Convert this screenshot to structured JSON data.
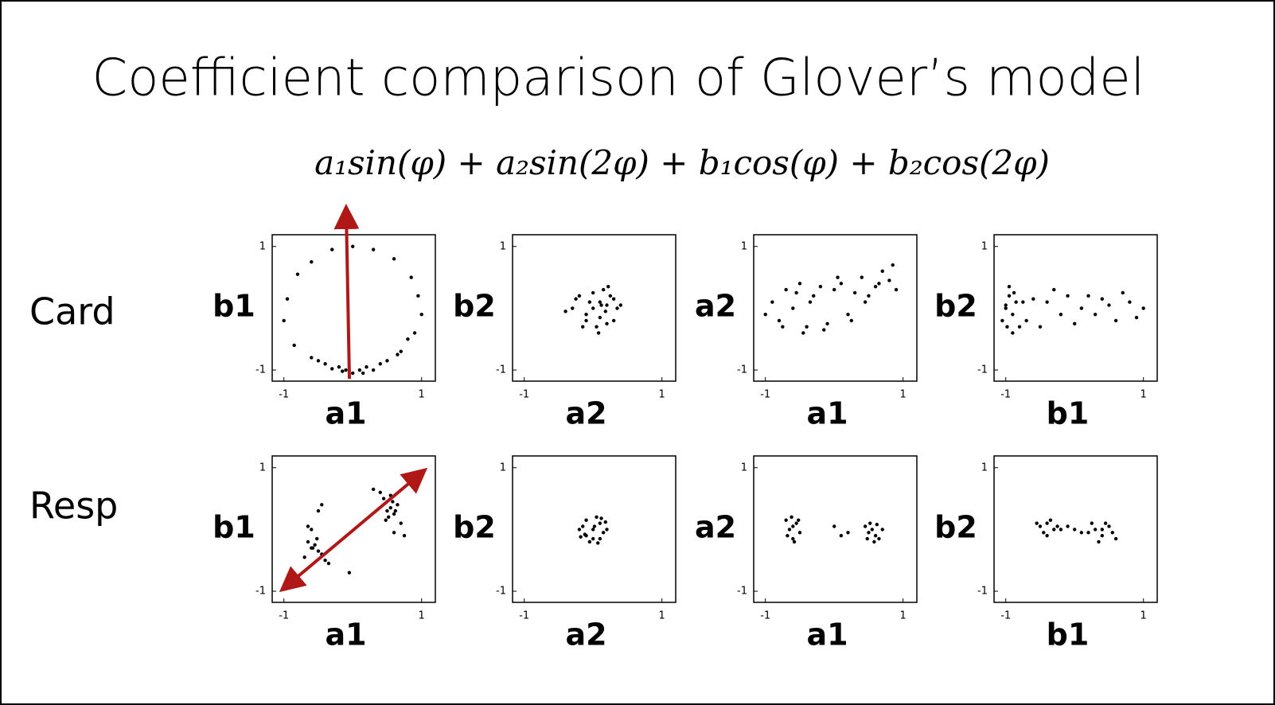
{
  "title": "Coefficient comparison of Glover’s model",
  "formula": "a₁sin(φ) + a₂sin(2φ) + b₁cos(φ) + b₂cos(2φ)",
  "row_labels": [
    "Card",
    "Resp"
  ],
  "chart_data": [
    {
      "type": "scatter",
      "xlabel": "a1",
      "ylabel": "b1",
      "xlim": [
        -1.17,
        1.2
      ],
      "ylim": [
        -1.18,
        1.19
      ],
      "xticks": [
        -1,
        1
      ],
      "yticks": [
        -1,
        1
      ],
      "color": "#000000",
      "x": [
        0.0,
        0.3,
        -0.3,
        0.6,
        -0.6,
        0.85,
        -0.8,
        0.95,
        -0.95,
        1.0,
        -1.0,
        0.9,
        -0.85,
        0.7,
        -0.6,
        0.4,
        -0.4,
        0.1,
        -0.1,
        0.2,
        -0.2,
        0.5,
        -0.5,
        0.0,
        0.3,
        -0.3,
        0.15,
        -0.15,
        0.65,
        0.8
      ],
      "y": [
        1.0,
        0.95,
        0.95,
        0.8,
        0.75,
        0.5,
        0.55,
        0.2,
        0.15,
        -0.1,
        -0.2,
        -0.4,
        -0.6,
        -0.7,
        -0.8,
        -0.9,
        -0.9,
        -1.0,
        -1.0,
        -0.95,
        -0.95,
        -0.85,
        -0.85,
        -1.05,
        -1.0,
        -0.98,
        -1.05,
        -1.02,
        -0.75,
        -0.5
      ]
    },
    {
      "type": "scatter",
      "xlabel": "a2",
      "ylabel": "b2",
      "xlim": [
        -1.17,
        1.2
      ],
      "ylim": [
        -1.18,
        1.19
      ],
      "xticks": [
        -1,
        1
      ],
      "yticks": [
        -1,
        1
      ],
      "color": "#000000",
      "x": [
        0.0,
        0.1,
        0.2,
        -0.1,
        -0.2,
        0.3,
        -0.3,
        0.15,
        0.05,
        0.25,
        -0.05,
        0.35,
        -0.4,
        0.4,
        0.1,
        0.2,
        -0.15,
        0.0,
        0.3,
        0.12,
        0.18,
        -0.25,
        0.22,
        0.08,
        -0.1
      ],
      "y": [
        0.0,
        0.1,
        0.05,
        -0.1,
        0.2,
        -0.2,
        0.0,
        0.3,
        -0.3,
        0.2,
        0.1,
        0.0,
        -0.05,
        0.05,
        -0.15,
        -0.25,
        -0.3,
        0.25,
        0.15,
        0.05,
        -0.05,
        0.15,
        0.35,
        -0.4,
        -0.2
      ]
    },
    {
      "type": "scatter",
      "xlabel": "a1",
      "ylabel": "a2",
      "xlim": [
        -1.17,
        1.2
      ],
      "ylim": [
        -1.18,
        1.19
      ],
      "xticks": [
        -1,
        1
      ],
      "yticks": [
        -1,
        1
      ],
      "color": "#000000",
      "x": [
        -1.0,
        -0.9,
        -0.8,
        -0.7,
        -0.6,
        -0.5,
        -0.4,
        -0.3,
        -0.2,
        -0.1,
        0.0,
        0.1,
        0.2,
        0.3,
        0.4,
        0.5,
        0.6,
        0.7,
        0.8,
        0.9,
        -0.75,
        -0.55,
        -0.35,
        -0.15,
        0.05,
        0.25,
        0.45,
        0.65,
        0.85,
        -0.45
      ],
      "y": [
        -0.1,
        0.1,
        -0.2,
        0.3,
        0.0,
        0.4,
        -0.3,
        0.2,
        0.35,
        -0.25,
        0.3,
        0.4,
        -0.1,
        0.25,
        0.5,
        0.2,
        0.35,
        0.6,
        0.45,
        0.3,
        -0.3,
        0.25,
        0.1,
        -0.35,
        0.5,
        -0.2,
        0.1,
        0.4,
        0.7,
        -0.4
      ]
    },
    {
      "type": "scatter",
      "xlabel": "b1",
      "ylabel": "b2",
      "xlim": [
        -1.17,
        1.2
      ],
      "ylim": [
        -1.18,
        1.19
      ],
      "xticks": [
        -1,
        1
      ],
      "yticks": [
        -1,
        1
      ],
      "color": "#000000",
      "x": [
        -1.0,
        -0.95,
        -0.9,
        -0.85,
        -1.05,
        -0.8,
        -0.95,
        -0.9,
        -0.75,
        -1.0,
        -0.7,
        -0.6,
        -0.5,
        -0.4,
        -0.3,
        -0.2,
        -0.1,
        0.0,
        0.1,
        0.2,
        0.3,
        0.4,
        0.5,
        0.6,
        0.7,
        0.8,
        0.9,
        1.0,
        -0.88,
        -0.98
      ],
      "y": [
        0.0,
        0.2,
        -0.1,
        0.1,
        -0.2,
        -0.3,
        0.35,
        -0.4,
        0.1,
        0.05,
        -0.2,
        0.15,
        -0.3,
        0.1,
        0.3,
        -0.1,
        0.2,
        -0.25,
        0.0,
        0.2,
        -0.1,
        0.15,
        0.05,
        -0.2,
        0.25,
        0.1,
        -0.15,
        0.0,
        0.25,
        -0.3
      ]
    },
    {
      "type": "scatter",
      "xlabel": "a1",
      "ylabel": "b1",
      "xlim": [
        -1.17,
        1.2
      ],
      "ylim": [
        -1.18,
        1.19
      ],
      "xticks": [
        -1,
        1
      ],
      "yticks": [
        -1,
        1
      ],
      "color": "#000000",
      "x": [
        -0.6,
        -0.55,
        -0.5,
        -0.65,
        -0.45,
        -0.58,
        -0.52,
        -0.7,
        -0.4,
        -0.6,
        -0.5,
        -0.35,
        0.5,
        0.55,
        0.6,
        0.45,
        0.65,
        0.52,
        0.58,
        0.4,
        0.7,
        0.3,
        0.62,
        0.48,
        0.55,
        0.75,
        0.6,
        -0.05,
        -0.45,
        -0.65
      ],
      "y": [
        -0.3,
        -0.25,
        -0.35,
        -0.2,
        -0.4,
        -0.3,
        -0.15,
        -0.45,
        -0.5,
        0.0,
        0.3,
        -0.55,
        0.3,
        0.35,
        0.25,
        0.5,
        0.4,
        0.2,
        0.45,
        0.6,
        0.1,
        0.65,
        0.3,
        0.15,
        0.55,
        -0.1,
        -0.05,
        -0.7,
        0.4,
        0.05
      ]
    },
    {
      "type": "scatter",
      "xlabel": "a2",
      "ylabel": "b2",
      "xlim": [
        -1.17,
        1.2
      ],
      "ylim": [
        -1.18,
        1.19
      ],
      "xticks": [
        -1,
        1
      ],
      "yticks": [
        -1,
        1
      ],
      "color": "#000000",
      "x": [
        0,
        0.1,
        -0.1,
        0.15,
        -0.15,
        0.05,
        -0.05,
        0.2,
        -0.2,
        0.0,
        0.1,
        -0.1,
        0.12,
        -0.12,
        0.02,
        0.18,
        -0.18,
        0.07
      ],
      "y": [
        0,
        0.1,
        -0.1,
        -0.05,
        0.05,
        0.2,
        -0.2,
        0.0,
        0.0,
        -0.15,
        -0.15,
        0.15,
        0.18,
        -0.08,
        0.05,
        0.12,
        -0.12,
        -0.22
      ]
    },
    {
      "type": "scatter",
      "xlabel": "a1",
      "ylabel": "a2",
      "xlim": [
        -1.17,
        1.2
      ],
      "ylim": [
        -1.18,
        1.19
      ],
      "xticks": [
        -1,
        1
      ],
      "yticks": [
        -1,
        1
      ],
      "color": "#000000",
      "x": [
        -0.6,
        -0.65,
        -0.55,
        -0.7,
        -0.5,
        -0.6,
        -0.62,
        -0.58,
        -0.52,
        -0.68,
        0.5,
        0.55,
        0.6,
        0.45,
        0.65,
        0.52,
        0.58,
        0.7,
        0.48,
        0.62,
        0.0,
        0.1,
        0.2
      ],
      "y": [
        0.05,
        0.0,
        0.1,
        0.15,
        -0.05,
        -0.15,
        0.2,
        -0.2,
        0.15,
        -0.1,
        -0.05,
        0.0,
        -0.1,
        0.05,
        -0.15,
        0.1,
        -0.2,
        0.0,
        -0.15,
        0.08,
        0.05,
        -0.1,
        -0.05
      ]
    },
    {
      "type": "scatter",
      "xlabel": "b1",
      "ylabel": "b2",
      "xlim": [
        -1.17,
        1.2
      ],
      "ylim": [
        -1.18,
        1.19
      ],
      "xticks": [
        -1,
        1
      ],
      "yticks": [
        -1,
        1
      ],
      "color": "#000000",
      "x": [
        -0.5,
        -0.4,
        -0.3,
        -0.45,
        -0.35,
        -0.55,
        -0.25,
        -0.4,
        -0.2,
        0.0,
        0.2,
        0.3,
        0.4,
        0.5,
        0.35,
        0.45,
        0.6,
        0.25,
        0.4,
        0.55,
        -0.1,
        0.1
      ],
      "y": [
        0.05,
        0.1,
        0.0,
        -0.05,
        0.15,
        0.1,
        0.05,
        -0.1,
        0.0,
        0.0,
        -0.05,
        0.0,
        -0.1,
        0.05,
        -0.2,
        0.1,
        -0.15,
        0.1,
        0.0,
        -0.05,
        0.05,
        -0.05
      ]
    }
  ]
}
